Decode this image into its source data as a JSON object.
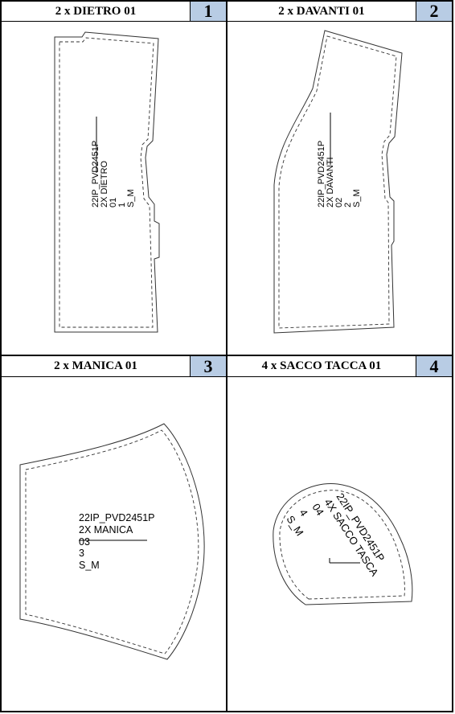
{
  "cells": [
    {
      "title": "2 x DIETRO 01",
      "number": "1",
      "label_lines": [
        "22IP_PVD2451P",
        "2X DIETRO",
        "01",
        "1",
        "S_M"
      ]
    },
    {
      "title": "2 x DAVANTI 01",
      "number": "2",
      "label_lines": [
        "22IP_PVD2451P",
        "2X DAVANTI",
        "02",
        "2",
        "S_M"
      ]
    },
    {
      "title": "2 x MANICA 01",
      "number": "3",
      "label_lines": [
        "22IP_PVD2451P",
        "2X MANICA",
        "03",
        "3",
        "S_M"
      ]
    },
    {
      "title": "4 x SACCO TACCA 01",
      "number": "4",
      "label_lines": [
        "22IP_PVD2451P",
        "4X SACCO TASCA",
        "04",
        "4",
        "S_M"
      ]
    }
  ]
}
